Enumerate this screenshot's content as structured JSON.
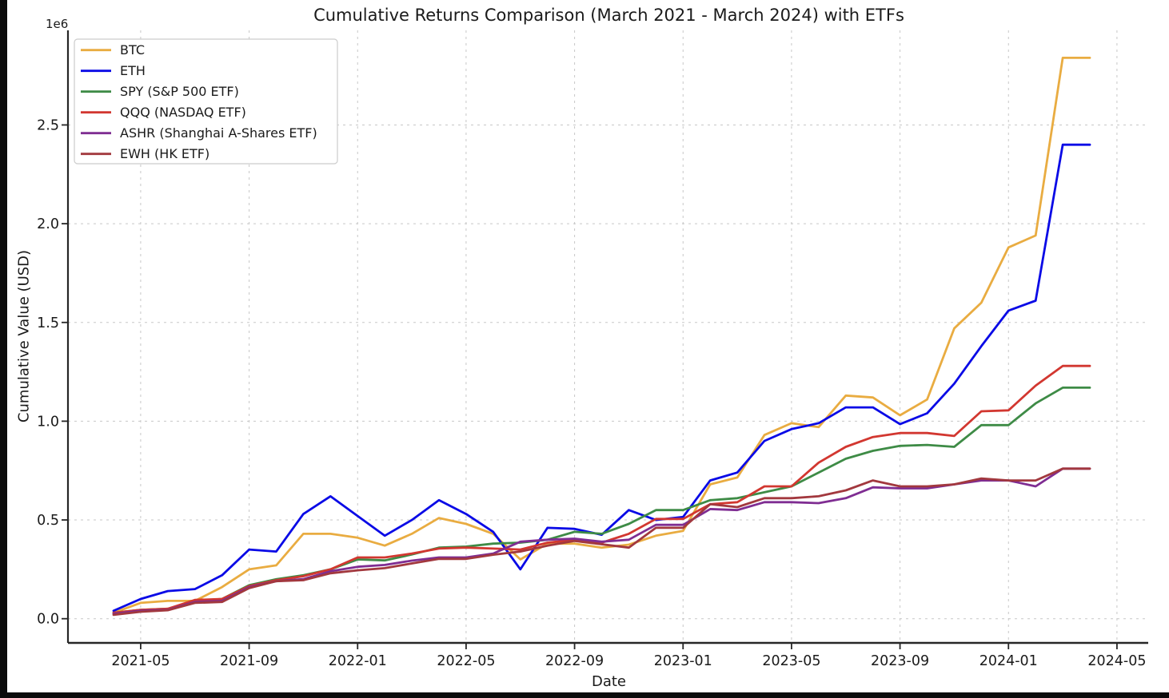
{
  "window": {
    "background_color": "#0b0b0b",
    "figure_background_color": "#ffffff"
  },
  "chart_data": {
    "type": "line",
    "title": "Cumulative Returns Comparison (March 2021 - March 2024) with ETFs",
    "xlabel": "Date",
    "ylabel": "Cumulative Value (USD)",
    "y_offset_label": "1e6",
    "grid": true,
    "grid_style": "dashed",
    "legend_position": "upper-left",
    "x_tick_labels": [
      "2021-05",
      "2021-09",
      "2022-01",
      "2022-05",
      "2022-09",
      "2023-01",
      "2023-05",
      "2023-09",
      "2024-01",
      "2024-05"
    ],
    "y_tick_labels": [
      "0.0",
      "0.5",
      "1.0",
      "1.5",
      "2.0",
      "2.5"
    ],
    "y_tick_values_1e6": [
      0.0,
      0.5,
      1.0,
      1.5,
      2.0,
      2.5
    ],
    "ylim_1e6": [
      -0.12,
      2.98
    ],
    "months": [
      "2021-03",
      "2021-04",
      "2021-05",
      "2021-06",
      "2021-07",
      "2021-08",
      "2021-09",
      "2021-10",
      "2021-11",
      "2021-12",
      "2022-01",
      "2022-02",
      "2022-03",
      "2022-04",
      "2022-05",
      "2022-06",
      "2022-07",
      "2022-08",
      "2022-09",
      "2022-10",
      "2022-11",
      "2022-12",
      "2023-01",
      "2023-02",
      "2023-03",
      "2023-04",
      "2023-05",
      "2023-06",
      "2023-07",
      "2023-08",
      "2023-09",
      "2023-10",
      "2023-11",
      "2023-12",
      "2024-01",
      "2024-02",
      "2024-03"
    ],
    "series": [
      {
        "name": "BTC",
        "color": "#E9AC41",
        "values_1e6": [
          0.03,
          0.08,
          0.09,
          0.09,
          0.16,
          0.25,
          0.27,
          0.43,
          0.43,
          0.41,
          0.37,
          0.43,
          0.51,
          0.48,
          0.43,
          0.3,
          0.38,
          0.38,
          0.36,
          0.375,
          0.42,
          0.445,
          0.68,
          0.715,
          0.93,
          0.99,
          0.97,
          1.13,
          1.12,
          1.03,
          1.11,
          1.47,
          1.6,
          1.88,
          1.94,
          2.84,
          2.84
        ]
      },
      {
        "name": "ETH",
        "color": "#0A0AE6",
        "values_1e6": [
          0.04,
          0.1,
          0.14,
          0.15,
          0.22,
          0.35,
          0.34,
          0.53,
          0.62,
          0.52,
          0.42,
          0.5,
          0.6,
          0.53,
          0.44,
          0.25,
          0.46,
          0.455,
          0.425,
          0.55,
          0.5,
          0.515,
          0.7,
          0.74,
          0.9,
          0.96,
          0.99,
          1.07,
          1.07,
          0.985,
          1.04,
          1.19,
          1.38,
          1.56,
          1.61,
          2.4,
          2.4
        ]
      },
      {
        "name": "SPY (S&P 500 ETF)",
        "color": "#3E8B46",
        "values_1e6": [
          0.03,
          0.045,
          0.05,
          0.09,
          0.1,
          0.17,
          0.2,
          0.22,
          0.25,
          0.3,
          0.295,
          0.325,
          0.36,
          0.365,
          0.38,
          0.385,
          0.4,
          0.44,
          0.43,
          0.48,
          0.55,
          0.55,
          0.6,
          0.61,
          0.64,
          0.67,
          0.74,
          0.81,
          0.85,
          0.875,
          0.88,
          0.87,
          0.98,
          0.98,
          1.09,
          1.17,
          1.17
        ]
      },
      {
        "name": "QQQ (NASDAQ ETF)",
        "color": "#D23730",
        "values_1e6": [
          0.03,
          0.045,
          0.05,
          0.095,
          0.1,
          0.165,
          0.195,
          0.215,
          0.25,
          0.31,
          0.31,
          0.33,
          0.355,
          0.36,
          0.355,
          0.35,
          0.385,
          0.4,
          0.385,
          0.43,
          0.505,
          0.505,
          0.58,
          0.59,
          0.67,
          0.67,
          0.79,
          0.87,
          0.92,
          0.94,
          0.94,
          0.925,
          1.05,
          1.055,
          1.18,
          1.28,
          1.28
        ]
      },
      {
        "name": "ASHR (Shanghai A-Shares ETF)",
        "color": "#7F2D92",
        "values_1e6": [
          0.025,
          0.04,
          0.045,
          0.085,
          0.09,
          0.16,
          0.19,
          0.2,
          0.24,
          0.263,
          0.272,
          0.294,
          0.31,
          0.31,
          0.33,
          0.39,
          0.4,
          0.405,
          0.39,
          0.4,
          0.475,
          0.475,
          0.555,
          0.55,
          0.59,
          0.59,
          0.585,
          0.61,
          0.665,
          0.66,
          0.66,
          0.68,
          0.7,
          0.7,
          0.67,
          0.76,
          0.76
        ]
      },
      {
        "name": "EWH (HK ETF)",
        "color": "#A2383E",
        "values_1e6": [
          0.02,
          0.035,
          0.043,
          0.08,
          0.085,
          0.155,
          0.19,
          0.195,
          0.23,
          0.245,
          0.256,
          0.28,
          0.303,
          0.303,
          0.324,
          0.34,
          0.37,
          0.394,
          0.377,
          0.36,
          0.46,
          0.46,
          0.58,
          0.565,
          0.61,
          0.61,
          0.62,
          0.65,
          0.7,
          0.67,
          0.67,
          0.68,
          0.71,
          0.7,
          0.7,
          0.76,
          0.76
        ]
      }
    ]
  }
}
